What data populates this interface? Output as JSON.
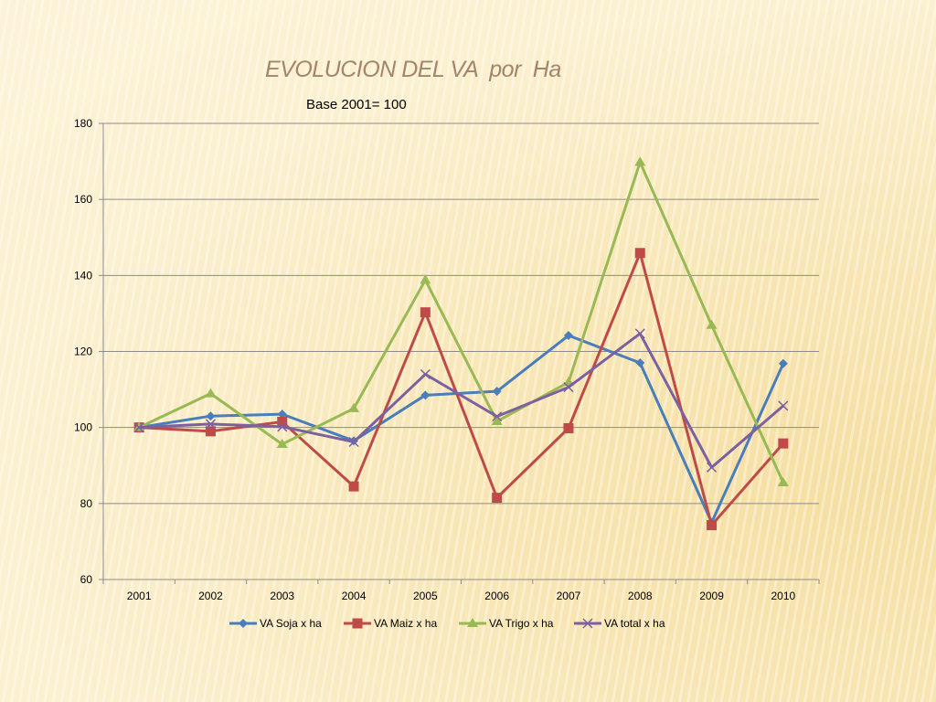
{
  "slide": {
    "title": "EVOLUCION DEL VA  por  Ha",
    "subtitle": "Base 2001= 100"
  },
  "chart_data": {
    "type": "line",
    "title": "EVOLUCION DEL VA  por  Ha",
    "subtitle": "Base 2001= 100",
    "xlabel": "",
    "ylabel": "",
    "categories": [
      "2001",
      "2002",
      "2003",
      "2004",
      "2005",
      "2006",
      "2007",
      "2008",
      "2009",
      "2010"
    ],
    "ylim": [
      60,
      180
    ],
    "yticks": [
      60,
      80,
      100,
      120,
      140,
      160,
      180
    ],
    "grid": true,
    "legend_position": "bottom",
    "series": [
      {
        "name": "VA Soja x ha",
        "color": "#4a7ebb",
        "marker": "diamond",
        "values": [
          100,
          103,
          103.5,
          96.5,
          108.5,
          109.5,
          124.2,
          117,
          75,
          116.8
        ]
      },
      {
        "name": "VA Maiz x ha",
        "color": "#be4b48",
        "marker": "square",
        "values": [
          100,
          99,
          101.5,
          84.5,
          130.3,
          81.5,
          99.8,
          145.9,
          74.3,
          95.8
        ]
      },
      {
        "name": "VA Trigo x ha",
        "color": "#98b954",
        "marker": "triangle",
        "values": [
          100,
          108.9,
          95.6,
          105,
          138.8,
          101.6,
          111.9,
          169.8,
          126.9,
          85.5
        ]
      },
      {
        "name": "VA total x ha",
        "color": "#7d60a0",
        "marker": "x",
        "values": [
          100,
          100.9,
          100.2,
          96.2,
          114,
          102.9,
          110.6,
          124.7,
          89.5,
          105.7
        ]
      }
    ]
  }
}
